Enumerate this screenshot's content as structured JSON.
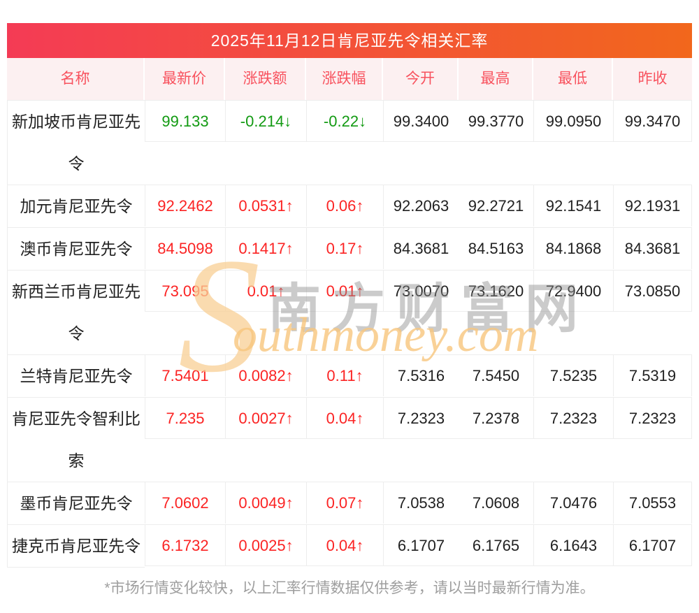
{
  "title": "2025年11月12日肯尼亚先令相关汇率",
  "colors": {
    "title_gradient_left": "#f43b55",
    "title_gradient_right": "#f2671c",
    "header_bg": "#fcf0f1",
    "header_text": "#f8525e",
    "up_red": "#fb2323",
    "down_green": "#129a12",
    "border": "#ededed",
    "footnote_gray": "#9e9e9e"
  },
  "table": {
    "columns": [
      "名称",
      "最新价",
      "涨跌额",
      "涨跌幅",
      "今开",
      "最高",
      "最低",
      "昨收"
    ],
    "rows": [
      {
        "name": "新加坡币肯尼亚先令",
        "latest": "99.133",
        "change": "-0.214↓",
        "pct": "-0.22↓",
        "open": "99.3400",
        "high": "99.3770",
        "low": "99.0950",
        "prev": "99.3470"
      },
      {
        "name": "加元肯尼亚先令",
        "latest": "92.2462",
        "change": "0.0531↑",
        "pct": "0.06↑",
        "open": "92.2063",
        "high": "92.2721",
        "low": "92.1541",
        "prev": "92.1931"
      },
      {
        "name": "澳币肯尼亚先令",
        "latest": "84.5098",
        "change": "0.1417↑",
        "pct": "0.17↑",
        "open": "84.3681",
        "high": "84.5163",
        "low": "84.1868",
        "prev": "84.3681"
      },
      {
        "name": "新西兰币肯尼亚先令",
        "latest": "73.095",
        "change": "0.01↑",
        "pct": "0.01↑",
        "open": "73.0070",
        "high": "73.1620",
        "low": "72.9400",
        "prev": "73.0850"
      },
      {
        "name": "兰特肯尼亚先令",
        "latest": "7.5401",
        "change": "0.0082↑",
        "pct": "0.11↑",
        "open": "7.5316",
        "high": "7.5450",
        "low": "7.5235",
        "prev": "7.5319"
      },
      {
        "name": "肯尼亚先令智利比索",
        "latest": "7.235",
        "change": "0.0027↑",
        "pct": "0.04↑",
        "open": "7.2323",
        "high": "7.2378",
        "low": "7.2323",
        "prev": "7.2323"
      },
      {
        "name": "墨币肯尼亚先令",
        "latest": "7.0602",
        "change": "0.0049↑",
        "pct": "0.07↑",
        "open": "7.0538",
        "high": "7.0608",
        "low": "7.0476",
        "prev": "7.0553"
      },
      {
        "name": "捷克币肯尼亚先令",
        "latest": "6.1732",
        "change": "0.0025↑",
        "pct": "0.04↑",
        "open": "6.1707",
        "high": "6.1765",
        "low": "6.1643",
        "prev": "6.1707"
      }
    ],
    "row_trends": [
      "down",
      "up",
      "up",
      "up",
      "up",
      "up",
      "up",
      "up"
    ]
  },
  "watermark": {
    "big_letter": "S",
    "cn_text": "南方财富网",
    "en_text": "outhmoney.com"
  },
  "footnote": "*市场行情变化较快，以上汇率行情数据仅供参考，请以当时最新行情为准。"
}
